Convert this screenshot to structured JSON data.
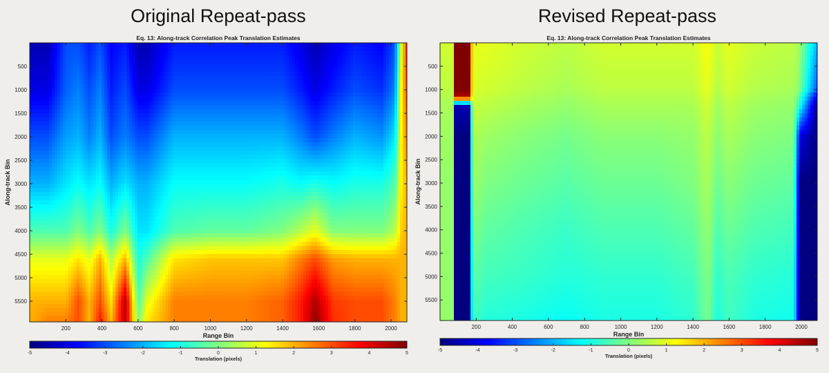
{
  "page": {
    "left_heading": "Original Repeat-pass",
    "right_heading": "Revised Repeat-pass"
  },
  "chart_data": [
    {
      "type": "heatmap",
      "title": "Eq. 13: Along-track Correlation Peak Translation Estimates",
      "xlabel": "Range Bin",
      "ylabel": "Along-track Bin",
      "xlim": [
        0,
        2088
      ],
      "ylim": [
        0,
        5940
      ],
      "y_reversed": true,
      "xticks": [
        200,
        400,
        600,
        800,
        1000,
        1200,
        1400,
        1600,
        1800,
        2000
      ],
      "yticks": [
        500,
        1000,
        1500,
        2000,
        2500,
        3000,
        3500,
        4000,
        4500,
        5000,
        5500
      ],
      "colorbar": {
        "label": "Translation (pixels)",
        "range": [
          -5,
          5
        ],
        "ticks": [
          -5,
          -4,
          -3,
          -2,
          -1,
          0,
          1,
          2,
          3,
          4,
          5
        ],
        "colormap": "jet"
      },
      "along_track_samples": [
        0,
        1000,
        2000,
        3000,
        4000,
        4600,
        5500,
        5940
      ],
      "profiles": [
        {
          "range_bin": 0,
          "values": [
            -4.5,
            -4,
            -3,
            -2,
            -0.5,
            1,
            2,
            2
          ]
        },
        {
          "range_bin": 100,
          "values": [
            -4.5,
            -4,
            -3,
            -2,
            -0.5,
            1,
            2,
            2.5
          ]
        },
        {
          "range_bin": 200,
          "values": [
            -3,
            -2.8,
            -2.2,
            -1.5,
            -0.5,
            1,
            2,
            2.5
          ]
        },
        {
          "range_bin": 270,
          "values": [
            -3,
            -2.5,
            -2,
            -1.2,
            0,
            1.5,
            3,
            3
          ]
        },
        {
          "range_bin": 330,
          "values": [
            -3.5,
            -3,
            -2.5,
            -1.5,
            -0.5,
            1,
            2,
            2
          ]
        },
        {
          "range_bin": 390,
          "values": [
            -3,
            -2.5,
            -2,
            -1.2,
            0,
            2,
            3,
            3.5
          ]
        },
        {
          "range_bin": 450,
          "values": [
            -3.8,
            -3.5,
            -3,
            -2,
            -1,
            0.5,
            1.5,
            2
          ]
        },
        {
          "range_bin": 530,
          "values": [
            -3.5,
            -3,
            -2.5,
            -1.5,
            0,
            2,
            4.5,
            4.5
          ]
        },
        {
          "range_bin": 600,
          "values": [
            -4.5,
            -4,
            -3,
            -2,
            -1.5,
            -1,
            -0.5,
            0
          ]
        },
        {
          "range_bin": 650,
          "values": [
            -4.5,
            -4,
            -3,
            -2,
            -1.5,
            -0.5,
            1,
            1.5
          ]
        },
        {
          "range_bin": 800,
          "values": [
            -3.5,
            -3,
            -2,
            -1.2,
            -0.5,
            1.5,
            2.5,
            2.5
          ]
        },
        {
          "range_bin": 1000,
          "values": [
            -3.5,
            -3,
            -2,
            -1.2,
            -0.3,
            1.8,
            2.5,
            2.5
          ]
        },
        {
          "range_bin": 1200,
          "values": [
            -3.5,
            -3,
            -2,
            -1.2,
            -0.3,
            1.8,
            2.5,
            2.5
          ]
        },
        {
          "range_bin": 1400,
          "values": [
            -3.5,
            -3,
            -2,
            -1,
            0,
            1.8,
            2.8,
            2.8
          ]
        },
        {
          "range_bin": 1500,
          "values": [
            -4,
            -3.5,
            -2.5,
            -1.2,
            0.5,
            2.5,
            3.5,
            3.5
          ]
        },
        {
          "range_bin": 1580,
          "values": [
            -4.5,
            -4,
            -3,
            -1,
            1,
            3,
            4.5,
            4.8
          ]
        },
        {
          "range_bin": 1680,
          "values": [
            -4,
            -3.5,
            -2.5,
            -1.2,
            0,
            2.2,
            3.2,
            3.3
          ]
        },
        {
          "range_bin": 1800,
          "values": [
            -3.5,
            -3,
            -2,
            -1,
            0,
            2,
            3,
            3
          ]
        },
        {
          "range_bin": 1950,
          "values": [
            -3.8,
            -3.3,
            -2.3,
            -1,
            0,
            2,
            3,
            3
          ]
        },
        {
          "range_bin": 2020,
          "values": [
            -3,
            -2.5,
            -1.5,
            -0.5,
            0.5,
            2,
            2.5,
            2.5
          ]
        },
        {
          "range_bin": 2060,
          "values": [
            1,
            1.5,
            1.5,
            1.5,
            1.8,
            2,
            2,
            2
          ]
        },
        {
          "range_bin": 2088,
          "values": [
            3.5,
            3,
            2.5,
            2,
            2,
            2,
            2,
            2
          ]
        }
      ]
    },
    {
      "type": "heatmap",
      "title": "Eq. 13: Along-track Correlation Peak Translation Estimates",
      "xlabel": "Range Bin",
      "ylabel": "Along-track Bin",
      "xlim": [
        0,
        2088
      ],
      "ylim": [
        0,
        5940
      ],
      "y_reversed": true,
      "xticks": [
        200,
        400,
        600,
        800,
        1000,
        1200,
        1400,
        1600,
        1800,
        2000
      ],
      "yticks": [
        500,
        1000,
        1500,
        2000,
        2500,
        3000,
        3500,
        4000,
        4500,
        5000,
        5500
      ],
      "colorbar": {
        "label": "Translation (pixels)",
        "range": [
          -5,
          5
        ],
        "ticks": [
          -5,
          -4,
          -3,
          -2,
          -1,
          0,
          1,
          2,
          3,
          4,
          5
        ],
        "colormap": "jet"
      },
      "along_track_samples": [
        0,
        1000,
        1150,
        1350,
        2000,
        3000,
        4000,
        5000,
        5940
      ],
      "profiles": [
        {
          "range_bin": 0,
          "values": [
            0.8,
            0.6,
            0.5,
            0.4,
            0.3,
            0.2,
            0.2,
            0.2,
            0.2
          ]
        },
        {
          "range_bin": 72,
          "values": [
            0.8,
            0.6,
            0.5,
            0.4,
            0.3,
            0.2,
            0.2,
            0.2,
            0.2
          ]
        },
        {
          "range_bin": 80,
          "values": [
            5,
            5,
            4.5,
            -4.5,
            -5,
            -5,
            -5,
            -5,
            -5
          ]
        },
        {
          "range_bin": 168,
          "values": [
            5,
            5,
            4.5,
            -4.5,
            -5,
            -5,
            -5,
            -5,
            -5
          ]
        },
        {
          "range_bin": 178,
          "values": [
            1,
            0.9,
            0.8,
            0.7,
            0.5,
            0.3,
            0,
            -0.3,
            -0.6
          ]
        },
        {
          "range_bin": 250,
          "values": [
            1,
            0.8,
            0.7,
            0.6,
            0.3,
            0,
            -0.3,
            -0.6,
            -0.9
          ]
        },
        {
          "range_bin": 450,
          "values": [
            0.8,
            0.6,
            0.5,
            0.4,
            0.1,
            -0.2,
            -0.5,
            -0.7,
            -1
          ]
        },
        {
          "range_bin": 700,
          "values": [
            0.6,
            0.4,
            0.3,
            0.2,
            -0.1,
            -0.4,
            -0.7,
            -0.9,
            -1.2
          ]
        },
        {
          "range_bin": 900,
          "values": [
            0.8,
            0.6,
            0.5,
            0.4,
            0.1,
            -0.2,
            -0.5,
            -0.8,
            -1
          ]
        },
        {
          "range_bin": 1200,
          "values": [
            0.8,
            0.6,
            0.5,
            0.4,
            0.1,
            -0.2,
            -0.5,
            -0.8,
            -1
          ]
        },
        {
          "range_bin": 1400,
          "values": [
            0.8,
            0.6,
            0.5,
            0.4,
            0.2,
            0,
            -0.3,
            -0.6,
            -0.8
          ]
        },
        {
          "range_bin": 1480,
          "values": [
            1.2,
            1,
            0.9,
            0.8,
            0.6,
            0.4,
            0.2,
            0,
            -0.1
          ]
        },
        {
          "range_bin": 1540,
          "values": [
            0.7,
            0.5,
            0.4,
            0.3,
            0.1,
            -0.2,
            -0.5,
            -0.8,
            -1
          ]
        },
        {
          "range_bin": 1590,
          "values": [
            1,
            0.8,
            0.7,
            0.6,
            0.4,
            0.1,
            -0.2,
            -0.5,
            -0.6
          ]
        },
        {
          "range_bin": 1750,
          "values": [
            0.7,
            0.5,
            0.4,
            0.3,
            0.1,
            -0.2,
            -0.5,
            -0.8,
            -1
          ]
        },
        {
          "range_bin": 1960,
          "values": [
            0.6,
            0.4,
            0.3,
            0.2,
            0,
            -0.3,
            -0.6,
            -0.9,
            -1.1
          ]
        },
        {
          "range_bin": 1990,
          "values": [
            0.3,
            0,
            -0.5,
            -1,
            -4,
            -5,
            -5,
            -5,
            -5
          ]
        },
        {
          "range_bin": 2088,
          "values": [
            -2,
            -3,
            -4,
            -5,
            -5,
            -5,
            -5,
            -5,
            -5
          ]
        }
      ]
    }
  ]
}
